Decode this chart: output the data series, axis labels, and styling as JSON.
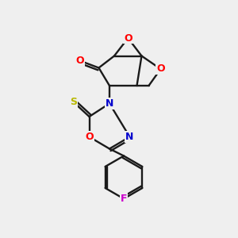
{
  "bg_color": "#efefef",
  "bond_color": "#1a1a1a",
  "atom_colors": {
    "O": "#ff0000",
    "N": "#0000cd",
    "S": "#b8b800",
    "F": "#cc00cc",
    "C": "#1a1a1a"
  },
  "figsize": [
    3.0,
    3.0
  ],
  "dpi": 100
}
